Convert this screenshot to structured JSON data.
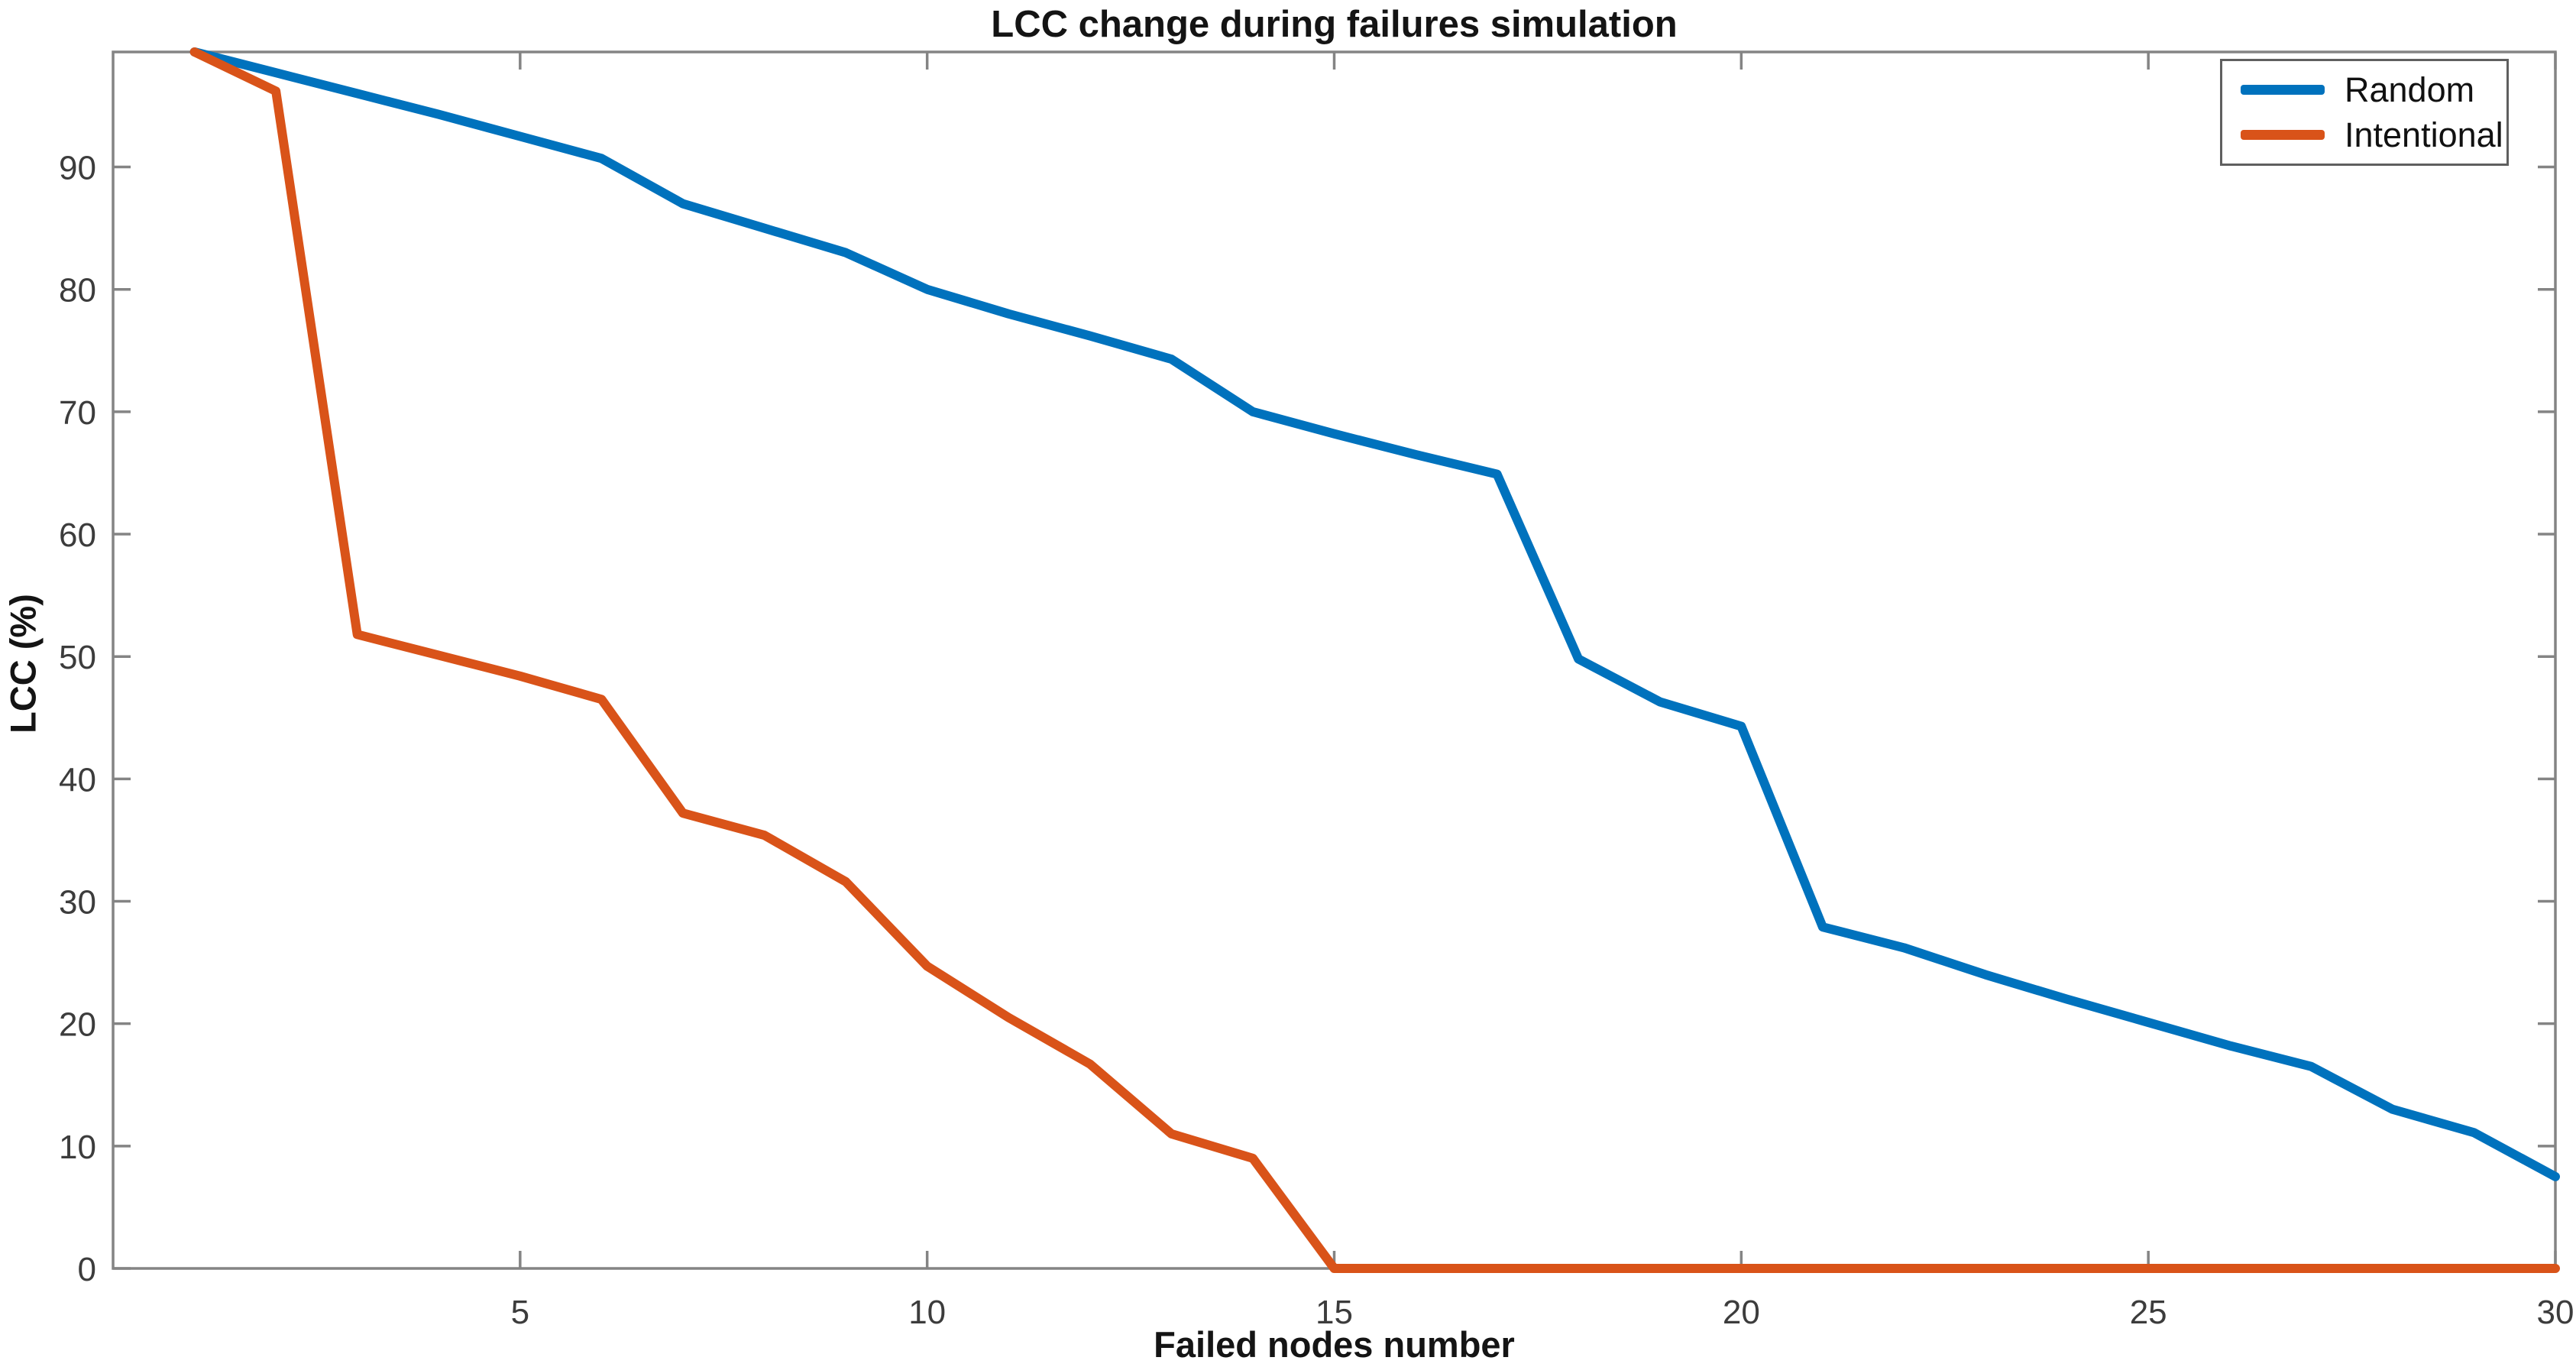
{
  "figure": {
    "background": "#ffffff"
  },
  "chart_data": {
    "type": "line",
    "title": "LCC change during failures simulation",
    "xlabel": "Failed nodes number",
    "ylabel": "LCC  (%)",
    "x": [
      1,
      2,
      3,
      4,
      5,
      6,
      7,
      8,
      9,
      10,
      11,
      12,
      13,
      14,
      15,
      16,
      17,
      18,
      19,
      20,
      21,
      22,
      23,
      24,
      25,
      26,
      27,
      28,
      29,
      30
    ],
    "series": [
      {
        "name": "Random",
        "color": "#0072BD",
        "values": [
          99.4,
          97.7,
          96.0,
          94.3,
          92.5,
          90.7,
          87.0,
          85.0,
          83.0,
          80.0,
          78.0,
          76.2,
          74.3,
          70.0,
          68.2,
          66.5,
          64.9,
          49.8,
          46.3,
          44.3,
          27.9,
          26.2,
          24.0,
          22.0,
          20.1,
          18.2,
          16.5,
          13.0,
          11.1,
          7.5
        ]
      },
      {
        "name": "Intentional",
        "color": "#D95319",
        "values": [
          99.4,
          96.2,
          51.8,
          50.1,
          48.4,
          46.5,
          37.2,
          35.4,
          31.6,
          24.7,
          20.5,
          16.7,
          11.0,
          9.0,
          0,
          0,
          0,
          0,
          0,
          0,
          0,
          0,
          0,
          0,
          0,
          0,
          0,
          0,
          0,
          0
        ]
      }
    ],
    "xlim": [
      0,
      30
    ],
    "ylim": [
      0,
      99.4
    ],
    "xticks": [
      5,
      10,
      15,
      20,
      25,
      30
    ],
    "yticks": [
      0,
      10,
      20,
      30,
      40,
      50,
      60,
      70,
      80,
      90
    ],
    "grid": false,
    "legend_position": "top-right",
    "line_width": 12,
    "axis_color": "#848484",
    "tick_label_color": "#3c3c3c"
  },
  "legend": {
    "items": [
      {
        "label": "Random",
        "color": "#0072BD"
      },
      {
        "label": "Intentional",
        "color": "#D95319"
      }
    ]
  }
}
